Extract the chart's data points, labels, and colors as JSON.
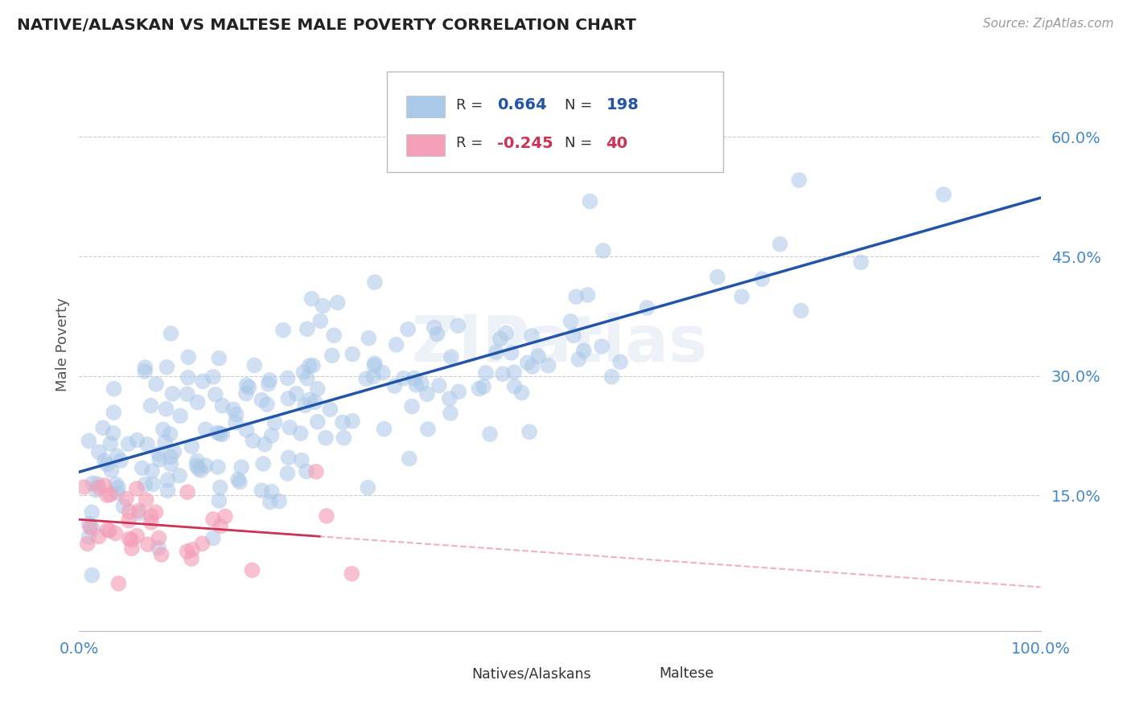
{
  "title": "NATIVE/ALASKAN VS MALTESE MALE POVERTY CORRELATION CHART",
  "source_text": "Source: ZipAtlas.com",
  "ylabel": "Male Poverty",
  "xlim": [
    0.0,
    1.0
  ],
  "ylim": [
    -0.02,
    0.7
  ],
  "yticks": [
    0.15,
    0.3,
    0.45,
    0.6
  ],
  "ytick_labels": [
    "15.0%",
    "30.0%",
    "45.0%",
    "60.0%"
  ],
  "blue_R": 0.664,
  "blue_N": 198,
  "pink_R": -0.245,
  "pink_N": 40,
  "blue_color": "#aac8e8",
  "blue_line_color": "#2255aa",
  "pink_color": "#f4a0b8",
  "pink_line_color": "#cc3355",
  "pink_line_light_color": "#f0b0c0",
  "background_color": "#ffffff",
  "grid_color": "#cccccc",
  "title_color": "#222222",
  "axis_label_color": "#555555",
  "tick_label_color": "#4488cc",
  "watermark_text": "ZIPatlas",
  "legend_label_blue": "Natives/Alaskans",
  "legend_label_pink": "Maltese",
  "blue_line_intercept": 0.175,
  "blue_line_slope": 0.155,
  "pink_line_intercept": 0.175,
  "pink_line_slope": -0.18
}
